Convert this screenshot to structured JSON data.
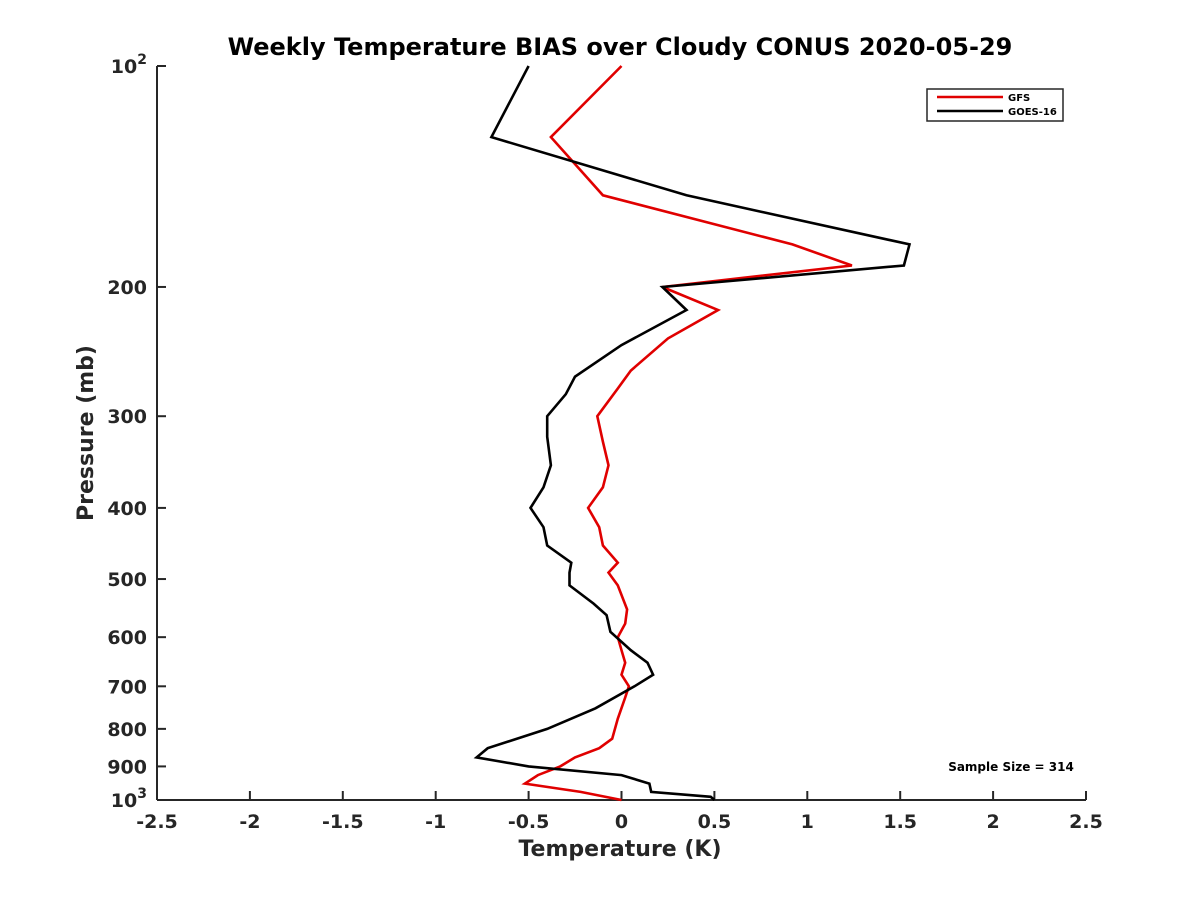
{
  "chart_data": {
    "type": "line",
    "title": "Weekly Temperature BIAS over Cloudy CONUS 2020-05-29",
    "xlabel": "Temperature (K)",
    "ylabel": "Pressure (mb)",
    "xlim": [
      -2.5,
      2.5
    ],
    "ylim": [
      100,
      1000
    ],
    "y_scale": "log",
    "y_reversed": true,
    "grid": false,
    "legend_position": "top-right",
    "x_ticks": [
      "-2.5",
      "-2",
      "-1.5",
      "-1",
      "-0.5",
      "0",
      "0.5",
      "1",
      "1.5",
      "2",
      "2.5"
    ],
    "y_ticks": [
      {
        "value": 100,
        "label": "10",
        "sup": "2"
      },
      {
        "value": 200,
        "label": "200",
        "sup": ""
      },
      {
        "value": 300,
        "label": "300",
        "sup": ""
      },
      {
        "value": 400,
        "label": "400",
        "sup": ""
      },
      {
        "value": 500,
        "label": "500",
        "sup": ""
      },
      {
        "value": 600,
        "label": "600",
        "sup": ""
      },
      {
        "value": 700,
        "label": "700",
        "sup": ""
      },
      {
        "value": 800,
        "label": "800",
        "sup": ""
      },
      {
        "value": 900,
        "label": "900",
        "sup": ""
      },
      {
        "value": 1000,
        "label": "10",
        "sup": "3"
      }
    ],
    "annotation": "Sample Size = 314",
    "series": [
      {
        "name": "GFS",
        "color": "#e00000",
        "points": [
          [
            0.0,
            100
          ],
          [
            -0.38,
            125
          ],
          [
            -0.1,
            150
          ],
          [
            0.92,
            175
          ],
          [
            1.24,
            187
          ],
          [
            0.22,
            200
          ],
          [
            0.52,
            215
          ],
          [
            0.25,
            235
          ],
          [
            0.05,
            260
          ],
          [
            -0.02,
            275
          ],
          [
            -0.13,
            300
          ],
          [
            -0.1,
            325
          ],
          [
            -0.07,
            350
          ],
          [
            -0.1,
            375
          ],
          [
            -0.18,
            400
          ],
          [
            -0.12,
            425
          ],
          [
            -0.1,
            450
          ],
          [
            -0.02,
            475
          ],
          [
            -0.07,
            490
          ],
          [
            -0.02,
            510
          ],
          [
            0.03,
            550
          ],
          [
            0.02,
            575
          ],
          [
            -0.02,
            600
          ],
          [
            0.0,
            625
          ],
          [
            0.02,
            650
          ],
          [
            0.0,
            675
          ],
          [
            0.04,
            700
          ],
          [
            0.02,
            725
          ],
          [
            -0.02,
            775
          ],
          [
            -0.05,
            825
          ],
          [
            -0.12,
            850
          ],
          [
            -0.25,
            875
          ],
          [
            -0.33,
            900
          ],
          [
            -0.45,
            925
          ],
          [
            -0.52,
            950
          ],
          [
            -0.22,
            975
          ],
          [
            0.0,
            1000
          ]
        ]
      },
      {
        "name": "GOES-16",
        "color": "#000000",
        "points": [
          [
            -0.5,
            100
          ],
          [
            -0.7,
            125
          ],
          [
            0.35,
            150
          ],
          [
            1.55,
            175
          ],
          [
            1.52,
            187
          ],
          [
            0.22,
            200
          ],
          [
            0.35,
            215
          ],
          [
            0.0,
            240
          ],
          [
            -0.25,
            265
          ],
          [
            -0.3,
            280
          ],
          [
            -0.4,
            300
          ],
          [
            -0.4,
            320
          ],
          [
            -0.38,
            350
          ],
          [
            -0.42,
            375
          ],
          [
            -0.49,
            400
          ],
          [
            -0.42,
            425
          ],
          [
            -0.4,
            450
          ],
          [
            -0.27,
            475
          ],
          [
            -0.28,
            490
          ],
          [
            -0.28,
            510
          ],
          [
            -0.15,
            540
          ],
          [
            -0.08,
            560
          ],
          [
            -0.06,
            590
          ],
          [
            0.05,
            625
          ],
          [
            0.14,
            650
          ],
          [
            0.17,
            675
          ],
          [
            0.07,
            700
          ],
          [
            -0.14,
            750
          ],
          [
            -0.4,
            800
          ],
          [
            -0.72,
            850
          ],
          [
            -0.78,
            875
          ],
          [
            -0.5,
            900
          ],
          [
            0.0,
            925
          ],
          [
            0.15,
            950
          ],
          [
            0.16,
            975
          ],
          [
            0.48,
            990
          ],
          [
            0.5,
            1000
          ]
        ]
      }
    ]
  }
}
